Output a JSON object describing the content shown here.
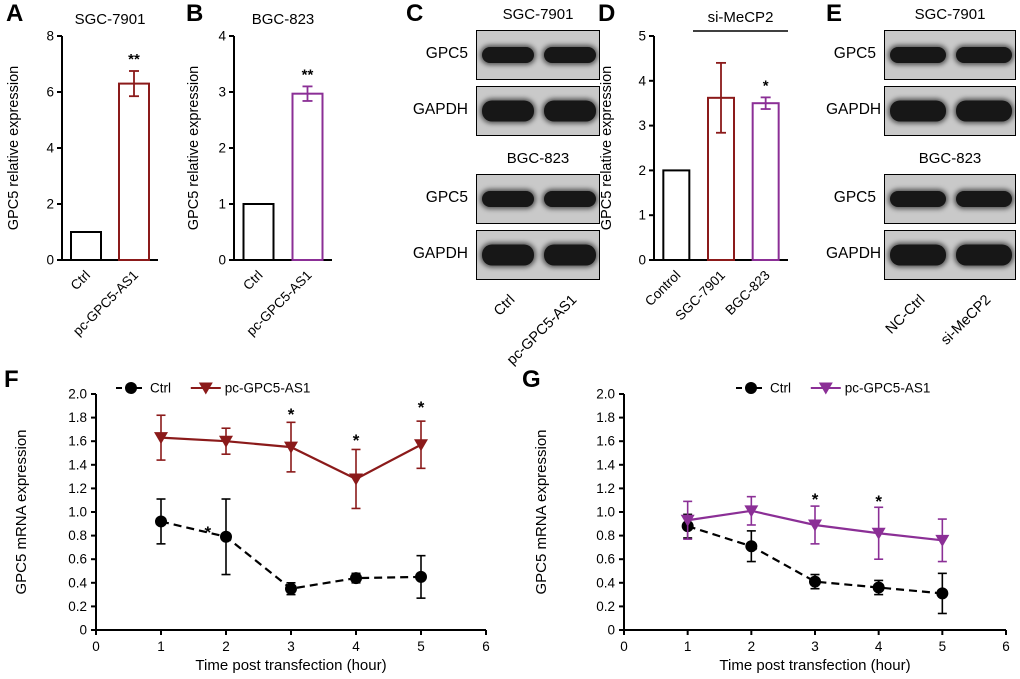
{
  "figure": {
    "panels": [
      {
        "id": "A",
        "label": "A"
      },
      {
        "id": "B",
        "label": "B"
      },
      {
        "id": "C",
        "label": "C"
      },
      {
        "id": "D",
        "label": "D"
      },
      {
        "id": "E",
        "label": "E"
      },
      {
        "id": "F",
        "label": "F"
      },
      {
        "id": "G",
        "label": "G"
      }
    ]
  },
  "colors": {
    "dark_red": "#8b1a1a",
    "purple": "#8b2f96",
    "black": "#000000",
    "blot_background": "#c9c9c9"
  },
  "chart_data": [
    {
      "id": "A",
      "type": "bar",
      "title": "SGC-7901",
      "ylabel": "GPC5 relative expression",
      "categories": [
        "Ctrl",
        "pc-GPC5-AS1"
      ],
      "values": [
        1.0,
        6.3
      ],
      "errors": [
        0,
        0.45
      ],
      "bar_colors": [
        "#000000",
        "#8b1a1a"
      ],
      "significance": [
        "",
        "**"
      ],
      "ylim": [
        0,
        8
      ],
      "yticks": [
        0,
        2,
        4,
        6,
        8
      ]
    },
    {
      "id": "B",
      "type": "bar",
      "title": "BGC-823",
      "ylabel": "GPC5 relative expression",
      "categories": [
        "Ctrl",
        "pc-GPC5-AS1"
      ],
      "values": [
        1.0,
        2.97
      ],
      "errors": [
        0,
        0.13
      ],
      "bar_colors": [
        "#000000",
        "#8b2f96"
      ],
      "significance": [
        "",
        "**"
      ],
      "ylim": [
        0,
        4
      ],
      "yticks": [
        0,
        1,
        2,
        3,
        4
      ]
    },
    {
      "id": "D",
      "type": "bar",
      "title": "si-MeCP2",
      "title_bracket_categories": [
        "SGC-7901",
        "BGC-823"
      ],
      "ylabel": "GPC5 relative expression",
      "categories": [
        "Control",
        "SGC-7901",
        "BGC-823"
      ],
      "values": [
        2.0,
        3.62,
        3.5
      ],
      "errors": [
        0,
        0.78,
        0.13
      ],
      "bar_colors": [
        "#000000",
        "#8b1a1a",
        "#8b2f96"
      ],
      "significance": [
        "",
        "",
        "*"
      ],
      "ylim": [
        0,
        5
      ],
      "yticks": [
        0,
        1,
        2,
        3,
        4,
        5
      ]
    },
    {
      "id": "F",
      "type": "line",
      "xlabel": "Time post transfection (hour)",
      "ylabel": "GPC5 mRNA expression",
      "xlim": [
        0,
        6
      ],
      "ylim": [
        0,
        2.0
      ],
      "xticks": [
        0,
        1,
        2,
        3,
        4,
        5,
        6
      ],
      "yticks": [
        0,
        0.2,
        0.4,
        0.6,
        0.8,
        1.0,
        1.2,
        1.4,
        1.6,
        1.8,
        2.0
      ],
      "x": [
        1,
        2,
        3,
        4,
        5
      ],
      "series": [
        {
          "name": "Ctrl",
          "color": "#000000",
          "marker": "circle",
          "dashed": true,
          "values": [
            0.92,
            0.79,
            0.35,
            0.44,
            0.45
          ],
          "errors": [
            0.19,
            0.32,
            0.05,
            0.04,
            0.18
          ]
        },
        {
          "name": "pc-GPC5-AS1",
          "color": "#8b1a1a",
          "marker": "triangle-down",
          "dashed": false,
          "values": [
            1.63,
            1.6,
            1.55,
            1.28,
            1.57
          ],
          "errors": [
            0.19,
            0.11,
            0.21,
            0.25,
            0.2
          ]
        }
      ],
      "annotations": [
        {
          "x": 1.72,
          "y": 0.84,
          "text": "*"
        },
        {
          "x": 3,
          "y": 1.84,
          "text": "*"
        },
        {
          "x": 4,
          "y": 1.62,
          "text": "*"
        },
        {
          "x": 5,
          "y": 1.9,
          "text": "*"
        }
      ],
      "legend_position": "top-left"
    },
    {
      "id": "G",
      "type": "line",
      "xlabel": "Time post transfection (hour)",
      "ylabel": "GPC5 mRNA expression",
      "xlim": [
        0,
        6
      ],
      "ylim": [
        0,
        2.0
      ],
      "xticks": [
        0,
        1,
        2,
        3,
        4,
        5,
        6
      ],
      "yticks": [
        0,
        0.2,
        0.4,
        0.6,
        0.8,
        1.0,
        1.2,
        1.4,
        1.6,
        1.8,
        2.0
      ],
      "x": [
        1,
        2,
        3,
        4,
        5
      ],
      "series": [
        {
          "name": "Ctrl",
          "color": "#000000",
          "marker": "circle",
          "dashed": true,
          "values": [
            0.88,
            0.71,
            0.41,
            0.36,
            0.31
          ],
          "errors": [
            0.1,
            0.13,
            0.06,
            0.06,
            0.17
          ]
        },
        {
          "name": "pc-GPC5-AS1",
          "color": "#8b2f96",
          "marker": "triangle-down",
          "dashed": false,
          "values": [
            0.93,
            1.01,
            0.89,
            0.82,
            0.76
          ],
          "errors": [
            0.16,
            0.12,
            0.16,
            0.22,
            0.18
          ]
        }
      ],
      "annotations": [
        {
          "x": 3,
          "y": 1.12,
          "text": "*"
        },
        {
          "x": 4,
          "y": 1.1,
          "text": "*"
        }
      ],
      "legend_position": "top-left"
    }
  ],
  "blot_data": [
    {
      "id": "C",
      "groups": [
        {
          "title": "SGC-7901",
          "rows": [
            "GPC5",
            "GAPDH"
          ]
        },
        {
          "title": "BGC-823",
          "rows": [
            "GPC5",
            "GAPDH"
          ]
        }
      ],
      "lanes": [
        "Ctrl",
        "pc-GPC5-AS1"
      ]
    },
    {
      "id": "E",
      "groups": [
        {
          "title": "SGC-7901",
          "rows": [
            "GPC5",
            "GAPDH"
          ]
        },
        {
          "title": "BGC-823",
          "rows": [
            "GPC5",
            "GAPDH"
          ]
        }
      ],
      "lanes": [
        "NC-Ctrl",
        "si-MeCP2"
      ]
    }
  ]
}
